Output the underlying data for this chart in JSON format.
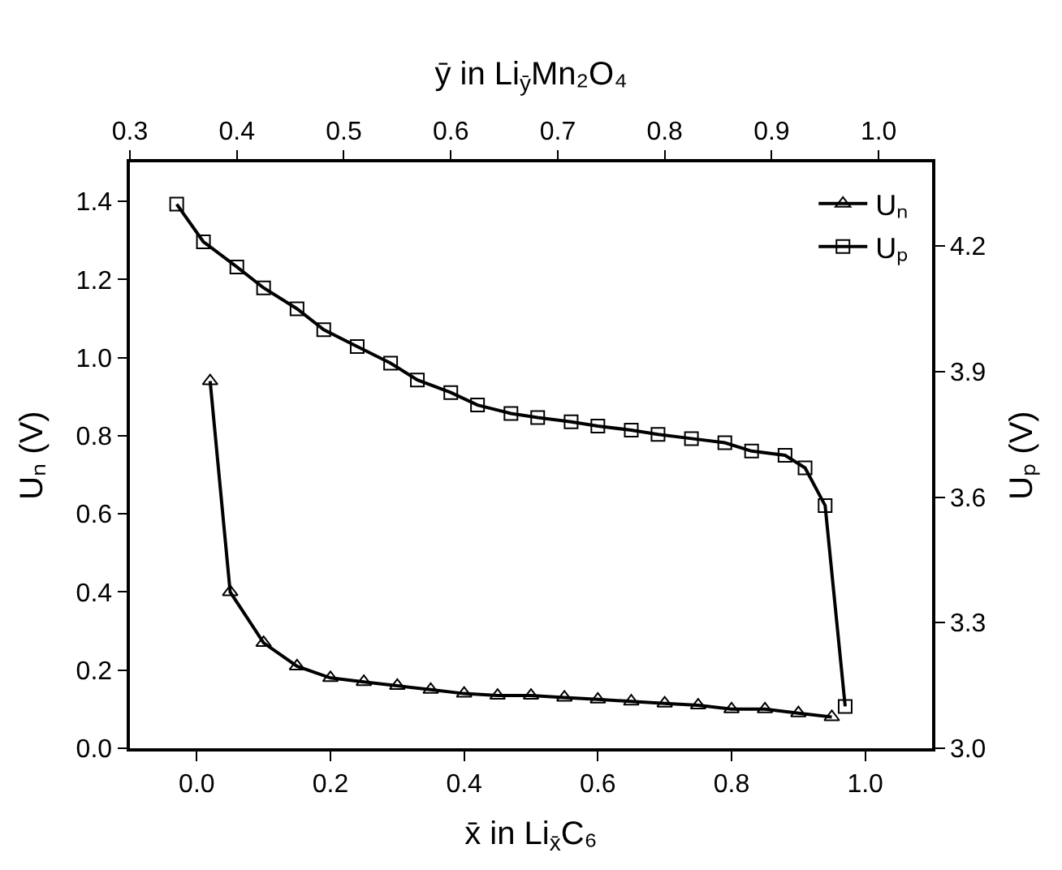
{
  "chart_data": {
    "type": "line",
    "xlabel": "x̄ in Li$_{x̄}$C₆",
    "ylabel": "Uₙ (V)",
    "y2label": "Uₚ (V)",
    "x2label": "ȳ in Li$_{ȳ}$Mn₂O₄",
    "xlim": [
      -0.1,
      1.1
    ],
    "xticks": [
      {
        "value": 0,
        "label": "0.0"
      },
      0.2,
      0.4,
      0.6,
      0.8,
      {
        "value": 1,
        "label": "1.0"
      }
    ],
    "ylim": [
      0,
      1.5
    ],
    "yticks": [
      {
        "value": 0,
        "label": "0.0"
      },
      0.2,
      0.4,
      0.6,
      0.8,
      {
        "value": 1,
        "label": "1.0"
      },
      1.2,
      1.4
    ],
    "y2lim": [
      3.0,
      4.4
    ],
    "y2ticks": [
      {
        "value": 3,
        "label": "3.0"
      },
      3.3,
      3.6,
      3.9,
      4.2
    ],
    "x2lim": [
      0.3,
      1.05
    ],
    "x2ticks": [
      0.3,
      0.4,
      0.5,
      0.6,
      0.7,
      0.8,
      0.9,
      {
        "value": 1,
        "label": "1.0"
      }
    ],
    "legend": "top right",
    "line_style": "solid",
    "series": [
      {
        "name": "Uₙ",
        "color": "#000000",
        "marker": "triangle",
        "x": [
          0.02,
          0.05,
          0.1,
          0.15,
          0.2,
          0.25,
          0.3,
          0.35,
          0.4,
          0.45,
          0.5,
          0.55,
          0.6,
          0.65,
          0.7,
          0.75,
          0.8,
          0.85,
          0.9,
          0.95
        ],
        "values": [
          0.94,
          0.4,
          0.27,
          0.21,
          0.18,
          0.17,
          0.16,
          0.15,
          0.14,
          0.135,
          0.135,
          0.13,
          0.125,
          0.12,
          0.115,
          0.11,
          0.1,
          0.1,
          0.09,
          0.08
        ]
      },
      {
        "name": "Uₚ",
        "color": "#000000",
        "marker": "square",
        "axis": "y2",
        "x": [
          -0.03,
          0.01,
          0.06,
          0.1,
          0.15,
          0.19,
          0.24,
          0.29,
          0.33,
          0.38,
          0.42,
          0.47,
          0.51,
          0.56,
          0.6,
          0.65,
          0.69,
          0.74,
          0.79,
          0.83,
          0.88,
          0.91,
          0.94,
          0.97
        ],
        "values": [
          4.3,
          4.21,
          4.15,
          4.1,
          4.05,
          4.0,
          3.96,
          3.92,
          3.88,
          3.85,
          3.82,
          3.8,
          3.79,
          3.78,
          3.77,
          3.76,
          3.75,
          3.74,
          3.73,
          3.71,
          3.7,
          3.67,
          3.58,
          3.1
        ]
      }
    ]
  }
}
